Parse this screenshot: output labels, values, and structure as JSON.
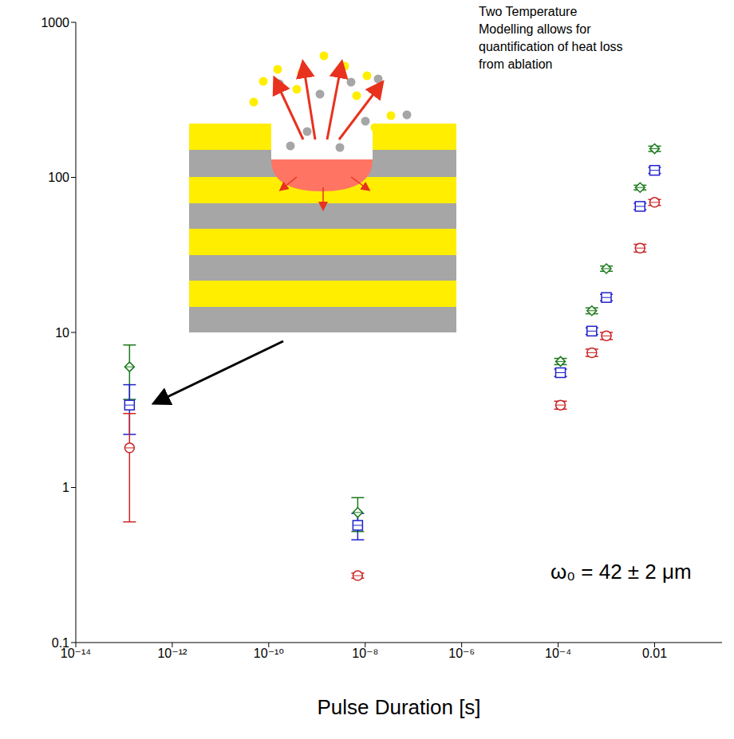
{
  "chart_data": {
    "type": "scatter",
    "x_label": "Pulse Duration [s]",
    "annotations": [
      "Two Temperature Modelling allows for quantification of heat loss from ablation",
      "ω₀ = 42 ± 2 μm"
    ],
    "log": true,
    "grid": false,
    "x": [
      1.3e-13,
      7e-09,
      0.000112,
      0.0005,
      0.001,
      0.005,
      0.01
    ],
    "xlim": [
      1e-14,
      0.25
    ],
    "xticks": [
      {
        "value": 1e-14,
        "label": "10⁻¹⁴"
      },
      {
        "value": 1e-12,
        "label": "10⁻¹²"
      },
      {
        "value": 1e-10,
        "label": "10⁻¹⁰"
      },
      {
        "value": 1e-08,
        "label": "10⁻⁸"
      },
      {
        "value": 1e-06,
        "label": "10⁻⁶"
      },
      {
        "value": 0.0001,
        "label": "10⁻⁴"
      },
      0.01
    ],
    "ylim": [
      0.1,
      1000
    ],
    "yticks": [
      0.1,
      1,
      10,
      100,
      1000
    ],
    "series": [
      {
        "color": "#1a7a1a",
        "marker": "diamond",
        "values": [
          6.0,
          0.69,
          6.5,
          13.8,
          25.8,
          86,
          153
        ],
        "errors": [
          2.3,
          0.17,
          0.3,
          0.6,
          1.0,
          3,
          6
        ]
      },
      {
        "color": "#1f1fcc",
        "marker": "square",
        "values": [
          3.4,
          0.57,
          5.5,
          10.2,
          16.8,
          65,
          111
        ],
        "errors": [
          1.2,
          0.11,
          0.3,
          0.5,
          0.8,
          3,
          5
        ]
      },
      {
        "color": "#cc2222",
        "marker": "circle",
        "values": [
          1.8,
          0.27,
          3.4,
          7.4,
          9.5,
          35,
          69
        ],
        "errors": [
          1.2,
          0.01,
          0.2,
          0.4,
          0.5,
          2,
          3
        ]
      }
    ]
  }
}
